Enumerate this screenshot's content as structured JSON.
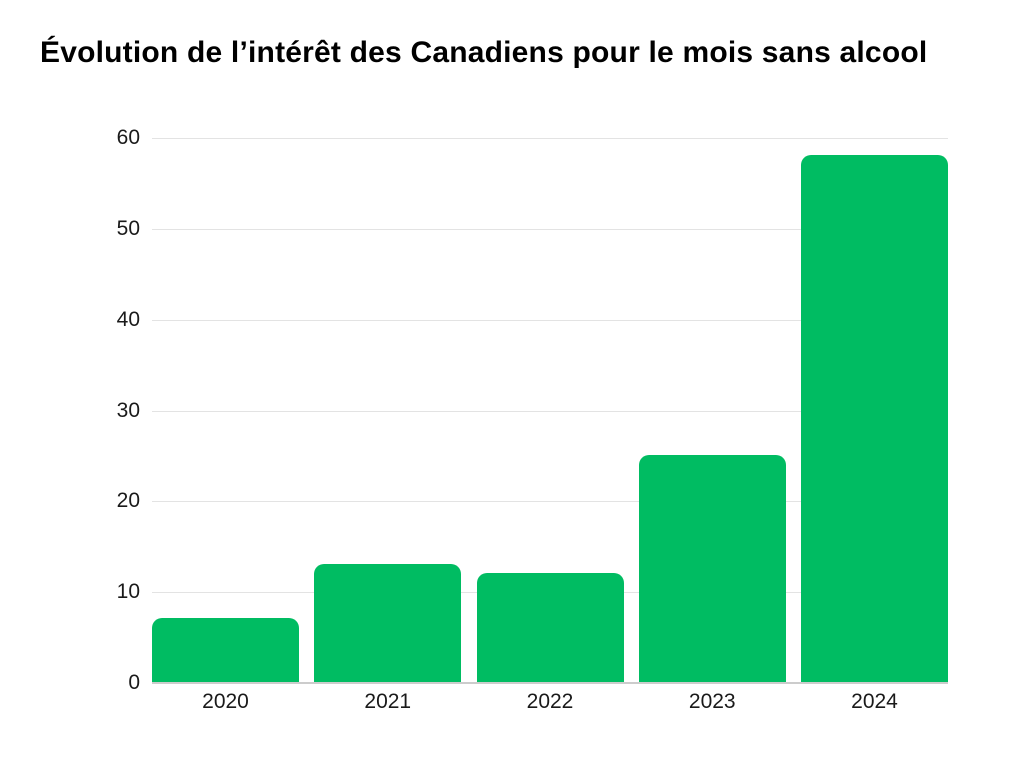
{
  "title": "Évolution de l’intérêt des Canadiens pour le mois sans alcool",
  "chart_data": {
    "type": "bar",
    "title": "Évolution de l’intérêt des Canadiens pour le mois sans alcool",
    "categories": [
      "2020",
      "2021",
      "2022",
      "2023",
      "2024"
    ],
    "values": [
      7,
      13,
      12,
      25,
      58
    ],
    "xlabel": "",
    "ylabel": "",
    "ylim": [
      0,
      60
    ],
    "yticks": [
      0,
      10,
      20,
      30,
      40,
      50,
      60
    ],
    "grid": true,
    "legend": "none",
    "colors": {
      "bar": "#00bc62",
      "gridline": "#e3e3e3",
      "baseline": "#cccccc",
      "tick_text": "#1a1a1a",
      "title_text": "#000000",
      "background": "#ffffff"
    }
  }
}
